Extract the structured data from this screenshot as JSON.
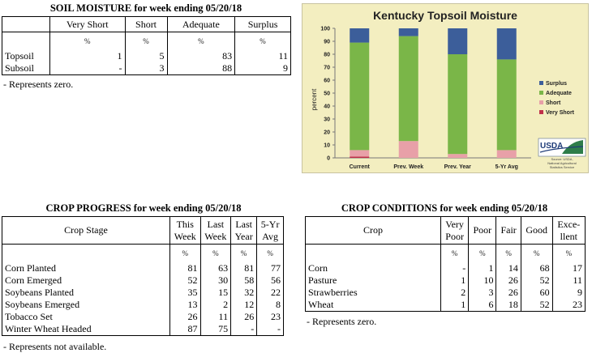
{
  "soil": {
    "title": "SOIL MOISTURE for week ending 05/20/18",
    "columns": [
      "Very Short",
      "Short",
      "Adequate",
      "Surplus"
    ],
    "unit": "%",
    "rows": [
      {
        "label": "Topsoil",
        "values": [
          "1",
          "5",
          "83",
          "11"
        ]
      },
      {
        "label": "Subsoil",
        "values": [
          "-",
          "3",
          "88",
          "9"
        ]
      }
    ],
    "note": "- Represents zero."
  },
  "chart_data": {
    "type": "bar",
    "stacked": true,
    "title": "Kentucky Topsoil Moisture",
    "ylabel": "percent",
    "xlabel": "",
    "ylim": [
      0,
      100
    ],
    "yticks": [
      0,
      10,
      20,
      30,
      40,
      50,
      60,
      70,
      80,
      90,
      100
    ],
    "categories": [
      "Current",
      "Prev. Week",
      "Prev. Year",
      "5-Yr Avg"
    ],
    "series": [
      {
        "name": "Very Short",
        "color": "#c0304a",
        "values": [
          1,
          0,
          0,
          0
        ]
      },
      {
        "name": "Short",
        "color": "#e8a0a8",
        "values": [
          5,
          13,
          3,
          6
        ]
      },
      {
        "name": "Adequate",
        "color": "#7ab648",
        "values": [
          83,
          81,
          77,
          70
        ]
      },
      {
        "name": "Surplus",
        "color": "#3c5e9a",
        "values": [
          11,
          6,
          20,
          24
        ]
      }
    ],
    "legend_order": [
      "Surplus",
      "Adequate",
      "Short",
      "Very Short"
    ],
    "legend": "right",
    "grid": false,
    "logo_text": "USDA",
    "source_lines": [
      "Source: USDA,",
      "National Agricultural",
      "Statistics Service"
    ]
  },
  "progress": {
    "title": "CROP PROGRESS for week ending 05/20/18",
    "stage_header": "Crop Stage",
    "columns": [
      [
        "This",
        "Week"
      ],
      [
        "Last",
        "Week"
      ],
      [
        "Last",
        "Year"
      ],
      [
        "5-Yr",
        "Avg"
      ]
    ],
    "unit": "%",
    "rows": [
      {
        "label": "Corn Planted",
        "values": [
          "81",
          "63",
          "81",
          "77"
        ]
      },
      {
        "label": "Corn Emerged",
        "values": [
          "52",
          "30",
          "58",
          "56"
        ]
      },
      {
        "label": "Soybeans Planted",
        "values": [
          "35",
          "15",
          "32",
          "22"
        ]
      },
      {
        "label": "Soybeans Emerged",
        "values": [
          "13",
          "2",
          "12",
          "8"
        ]
      },
      {
        "label": "Tobacco Set",
        "values": [
          "26",
          "11",
          "26",
          "23"
        ]
      },
      {
        "label": "Winter Wheat Headed",
        "values": [
          "87",
          "75",
          "-",
          "-"
        ]
      }
    ],
    "note": "- Represents not available."
  },
  "conditions": {
    "title": "CROP CONDITIONS for week ending 05/20/18",
    "crop_header": "Crop",
    "columns": [
      [
        "Very",
        "Poor"
      ],
      [
        "Poor"
      ],
      [
        "Fair"
      ],
      [
        "Good"
      ],
      [
        "Exce-",
        "llent"
      ]
    ],
    "unit": "%",
    "rows": [
      {
        "label": "Corn",
        "values": [
          "-",
          "1",
          "14",
          "68",
          "17"
        ]
      },
      {
        "label": "Pasture",
        "values": [
          "1",
          "10",
          "26",
          "52",
          "11"
        ]
      },
      {
        "label": "Strawberries",
        "values": [
          "2",
          "3",
          "26",
          "60",
          "9"
        ]
      },
      {
        "label": "Wheat",
        "values": [
          "1",
          "6",
          "18",
          "52",
          "23"
        ]
      }
    ],
    "note": "- Represents zero."
  }
}
